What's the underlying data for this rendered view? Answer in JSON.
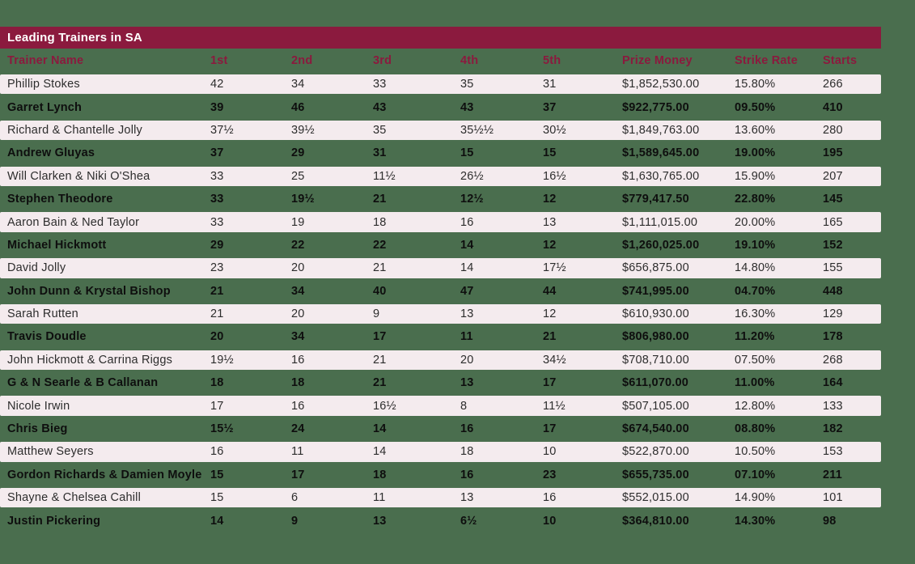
{
  "page": {
    "background_color": "#4a6e4e"
  },
  "table": {
    "title": "Leading Trainers in SA",
    "colors": {
      "title_bar_bg": "#8b1a3e",
      "title_text": "#ffffff",
      "header_text": "#8b1a3e",
      "row_light_bg": "#f4ebee",
      "row_light_text": "#2d2d2d",
      "row_green_text": "#0e0e0e"
    },
    "columns": [
      "Trainer Name",
      "1st",
      "2nd",
      "3rd",
      "4th",
      "5th",
      "Prize Money",
      "Strike Rate",
      "Starts"
    ],
    "column_keys": [
      "trainer-name",
      "first",
      "second",
      "third",
      "fourth",
      "fifth",
      "prize-money",
      "strike-rate",
      "starts"
    ],
    "rows": [
      [
        "Phillip Stokes",
        "42",
        "34",
        "33",
        "35",
        "31",
        "$1,852,530.00",
        "15.80%",
        "266"
      ],
      [
        "Garret Lynch",
        "39",
        "46",
        "43",
        "43",
        "37",
        "$922,775.00",
        "09.50%",
        "410"
      ],
      [
        "Richard & Chantelle Jolly",
        "37½",
        "39½",
        "35",
        "35½½",
        "30½",
        "$1,849,763.00",
        "13.60%",
        "280"
      ],
      [
        "Andrew Gluyas",
        "37",
        "29",
        "31",
        "15",
        "15",
        "$1,589,645.00",
        "19.00%",
        "195"
      ],
      [
        "Will Clarken & Niki O'Shea",
        "33",
        "25",
        "11½",
        "26½",
        "16½",
        "$1,630,765.00",
        "15.90%",
        "207"
      ],
      [
        "Stephen Theodore",
        "33",
        "19½",
        "21",
        "12½",
        "12",
        "$779,417.50",
        "22.80%",
        "145"
      ],
      [
        "Aaron Bain & Ned Taylor",
        "33",
        "19",
        "18",
        "16",
        "13",
        "$1,111,015.00",
        "20.00%",
        "165"
      ],
      [
        "Michael Hickmott",
        "29",
        "22",
        "22",
        "14",
        "12",
        "$1,260,025.00",
        "19.10%",
        "152"
      ],
      [
        "David Jolly",
        "23",
        "20",
        "21",
        "14",
        "17½",
        "$656,875.00",
        "14.80%",
        "155"
      ],
      [
        "John Dunn & Krystal Bishop",
        "21",
        "34",
        "40",
        "47",
        "44",
        "$741,995.00",
        "04.70%",
        "448"
      ],
      [
        "Sarah Rutten",
        "21",
        "20",
        "9",
        "13",
        "12",
        "$610,930.00",
        "16.30%",
        "129"
      ],
      [
        "Travis Doudle",
        "20",
        "34",
        "17",
        "11",
        "21",
        "$806,980.00",
        "11.20%",
        "178"
      ],
      [
        "John Hickmott & Carrina Riggs",
        "19½",
        "16",
        "21",
        "20",
        "34½",
        "$708,710.00",
        "07.50%",
        "268"
      ],
      [
        "G & N Searle & B Callanan",
        "18",
        "18",
        "21",
        "13",
        "17",
        "$611,070.00",
        "11.00%",
        "164"
      ],
      [
        "Nicole Irwin",
        "17",
        "16",
        "16½",
        "8",
        "11½",
        "$507,105.00",
        "12.80%",
        "133"
      ],
      [
        "Chris Bieg",
        "15½",
        "24",
        "14",
        "16",
        "17",
        "$674,540.00",
        "08.80%",
        "182"
      ],
      [
        "Matthew Seyers",
        "16",
        "11",
        "14",
        "18",
        "10",
        "$522,870.00",
        "10.50%",
        "153"
      ],
      [
        "Gordon Richards & Damien Moyle",
        "15",
        "17",
        "18",
        "16",
        "23",
        "$655,735.00",
        "07.10%",
        "211"
      ],
      [
        "Shayne & Chelsea Cahill",
        "15",
        "6",
        "11",
        "13",
        "16",
        "$552,015.00",
        "14.90%",
        "101"
      ],
      [
        "Justin Pickering",
        "14",
        "9",
        "13",
        "6½",
        "10",
        "$364,810.00",
        "14.30%",
        "98"
      ]
    ]
  }
}
